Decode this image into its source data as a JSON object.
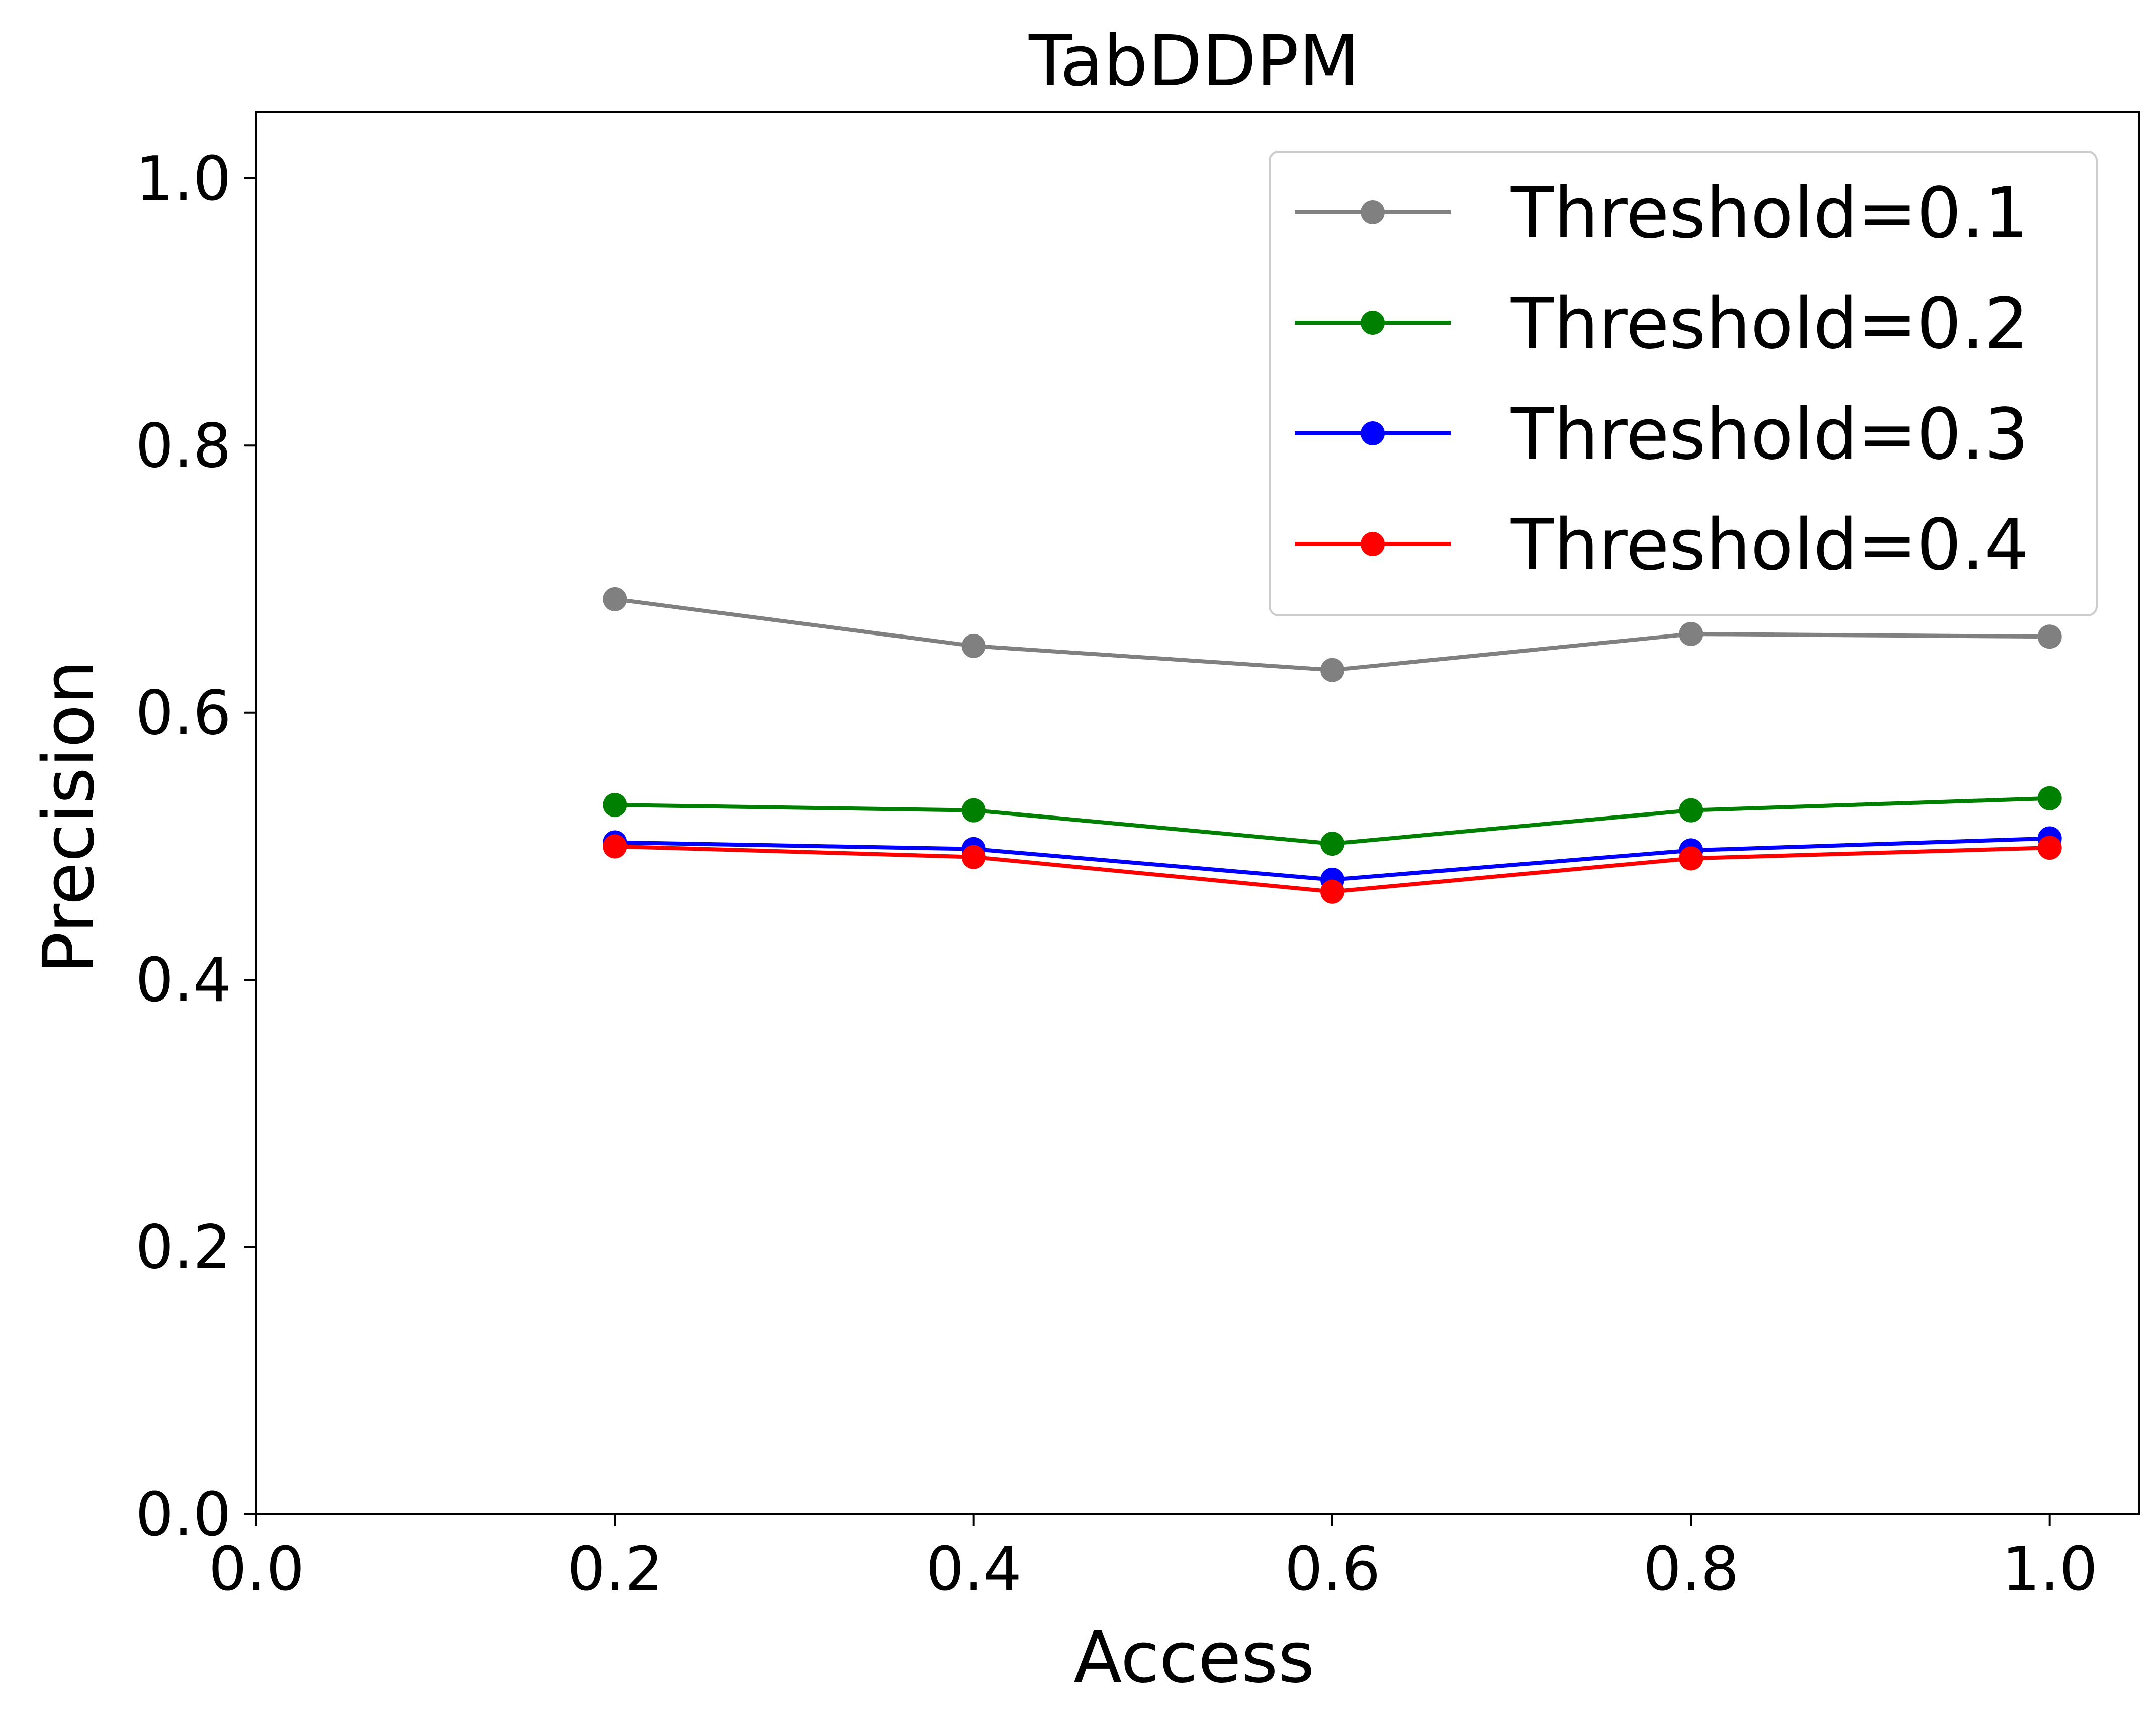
{
  "chart_data": {
    "type": "line",
    "title": "TabDDPM",
    "xlabel": "Access",
    "ylabel": "Precision",
    "xlim": [
      0.0,
      1.05
    ],
    "ylim": [
      0.0,
      1.05
    ],
    "xticks": [
      0.0,
      0.2,
      0.4,
      0.6,
      0.8,
      1.0
    ],
    "yticks": [
      0.0,
      0.2,
      0.4,
      0.6,
      0.8,
      1.0
    ],
    "xtick_labels": [
      "0.0",
      "0.2",
      "0.4",
      "0.6",
      "0.8",
      "1.0"
    ],
    "ytick_labels": [
      "0.0",
      "0.2",
      "0.4",
      "0.6",
      "0.8",
      "1.0"
    ],
    "grid": false,
    "legend_position": "top-right",
    "x": [
      0.2,
      0.4,
      0.6,
      0.8,
      1.0
    ],
    "series": [
      {
        "name": "Threshold=0.1",
        "color": "#808080",
        "values": [
          0.685,
          0.65,
          0.632,
          0.659,
          0.657
        ]
      },
      {
        "name": "Threshold=0.2",
        "color": "#008000",
        "values": [
          0.531,
          0.527,
          0.502,
          0.527,
          0.536
        ]
      },
      {
        "name": "Threshold=0.3",
        "color": "#0000ff",
        "values": [
          0.503,
          0.498,
          0.475,
          0.497,
          0.506
        ]
      },
      {
        "name": "Threshold=0.4",
        "color": "#ff0000",
        "values": [
          0.5,
          0.492,
          0.466,
          0.491,
          0.499
        ]
      }
    ]
  }
}
